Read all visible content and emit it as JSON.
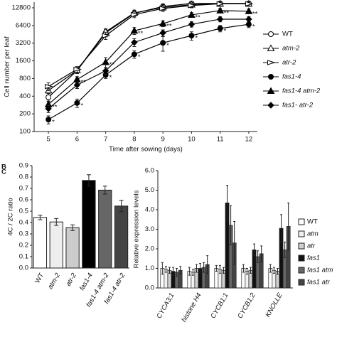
{
  "chart_data": [
    {
      "type": "line",
      "log": true,
      "x_label": "Time after sowing (days)",
      "y_label": "Cell number per leaf",
      "x": [
        5,
        6,
        7,
        8,
        9,
        10,
        11,
        12
      ],
      "xlim": [
        4.5,
        12.3
      ],
      "xticks": [
        5,
        6,
        7,
        8,
        9,
        10,
        11,
        12
      ],
      "ylim": [
        100,
        16000
      ],
      "yticks": [
        100,
        200,
        400,
        800,
        1600,
        3200,
        6400,
        12800
      ],
      "series": [
        {
          "name": "WT",
          "color": "#000000",
          "marker": "circle",
          "filled": false,
          "values": [
            384,
            1090,
            4800,
            10300,
            13500,
            15200,
            15200,
            15200
          ],
          "errors": [
            60,
            120,
            700,
            1200,
            1500,
            1200,
            1200,
            1200
          ]
        },
        {
          "name": "atm-2",
          "color": "#000000",
          "marker": "triangle",
          "filled": false,
          "values": [
            500,
            1100,
            5000,
            10500,
            13000,
            14500,
            15000,
            15000
          ],
          "errors": [
            80,
            120,
            600,
            1200,
            1400,
            1200,
            1200,
            1200
          ]
        },
        {
          "name": "atr-2",
          "color": "#000000",
          "marker": "tri-down",
          "filled": false,
          "values": [
            585,
            1150,
            4300,
            9800,
            12500,
            14000,
            15000,
            15000
          ],
          "errors": [
            90,
            130,
            600,
            1100,
            1400,
            1200,
            1200,
            1200
          ]
        },
        {
          "name": "fas1-4",
          "color": "#000000",
          "marker": "circle",
          "filled": true,
          "values": [
            160,
            307,
            920,
            2070,
            3240,
            4300,
            5700,
            6700
          ],
          "errors": [
            25,
            50,
            120,
            300,
            900,
            700,
            700,
            800
          ],
          "point_labels": [
            "*",
            "*",
            "*",
            "*",
            "*",
            "*",
            "*",
            "*"
          ]
        },
        {
          "name": "fas1-4 atm-2",
          "color": "#000000",
          "marker": "triangle",
          "filled": true,
          "values": [
            290,
            770,
            1520,
            5200,
            6900,
            9700,
            11500,
            11200
          ],
          "errors": [
            40,
            90,
            300,
            700,
            800,
            900,
            1000,
            1000
          ],
          "point_labels": [
            "**",
            "**",
            "**",
            "**",
            "**",
            "**",
            "**",
            "**"
          ]
        },
        {
          "name": "fas1- atr-2",
          "color": "#000000",
          "marker": "diamond",
          "filled": true,
          "values": [
            245,
            620,
            1080,
            3300,
            4800,
            6700,
            8200,
            8200
          ],
          "errors": [
            35,
            80,
            150,
            500,
            600,
            700,
            800,
            800
          ]
        }
      ]
    },
    {
      "type": "bar",
      "panel_label": "B",
      "y_label": "4C / 2C ratio",
      "categories": [
        "WT",
        "atm-2",
        "atr-2",
        "fas1-4",
        "fas1-4 atm-2",
        "fas1-4 atr-2"
      ],
      "values": [
        0.445,
        0.405,
        0.355,
        0.77,
        0.685,
        0.545
      ],
      "errors": [
        0.02,
        0.03,
        0.025,
        0.05,
        0.035,
        0.05
      ],
      "colors": [
        "#ffffff",
        "#eeeeee",
        "#cccccc",
        "#000000",
        "#666666",
        "#444444"
      ],
      "ylim": [
        0,
        0.9
      ],
      "yticks": [
        {
          "value": 0,
          "label": "0.0"
        },
        0.1,
        0.2,
        0.3,
        0.4,
        0.5,
        0.6,
        0.7,
        0.8,
        0.9
      ]
    },
    {
      "type": "grouped-bar",
      "panel_label": "C",
      "y_label": "Relative expression levels",
      "categories": [
        "CYCA3;1",
        "histone H4",
        "CYCB1;1",
        "CYCB1;2",
        "KNOLLE"
      ],
      "ylim": [
        0,
        6
      ],
      "yticks": [
        {
          "value": 0,
          "label": "0.0"
        },
        {
          "value": 1,
          "label": "1.0"
        },
        {
          "value": 2,
          "label": "2.0"
        },
        {
          "value": 3,
          "label": "3.0"
        },
        {
          "value": 4,
          "label": "4.0"
        },
        {
          "value": 5,
          "label": "5.0"
        },
        {
          "value": 6,
          "label": "6.0"
        }
      ],
      "series": [
        {
          "name": "WT",
          "color": "#ffffff",
          "values": [
            1.0,
            0.85,
            1.0,
            1.0,
            1.0
          ],
          "errors": [
            0.3,
            0.2,
            0.15,
            0.2,
            0.2
          ]
        },
        {
          "name": "atm",
          "color": "#f2f2f2",
          "values": [
            0.95,
            0.8,
            0.95,
            0.85,
            0.9
          ],
          "errors": [
            0.15,
            0.15,
            0.2,
            0.15,
            0.15
          ]
        },
        {
          "name": "atr",
          "color": "#d0d0d0",
          "values": [
            0.9,
            1.0,
            0.9,
            0.9,
            0.85
          ],
          "errors": [
            0.15,
            0.2,
            0.15,
            0.15,
            0.15
          ]
        },
        {
          "name": "fas1",
          "color": "#111111",
          "values": [
            0.85,
            1.0,
            4.35,
            1.95,
            3.05
          ],
          "errors": [
            0.2,
            0.25,
            0.9,
            0.3,
            0.7
          ]
        },
        {
          "name": "fas1 atm",
          "color": "#666666",
          "values": [
            0.8,
            1.05,
            3.2,
            1.6,
            1.95
          ],
          "errors": [
            0.2,
            0.25,
            1.0,
            0.3,
            0.4
          ]
        },
        {
          "name": "fas1 atr",
          "color": "#444444",
          "values": [
            0.9,
            1.2,
            2.3,
            1.75,
            3.15
          ],
          "errors": [
            0.2,
            0.45,
            1.1,
            0.4,
            1.2
          ]
        }
      ]
    }
  ]
}
